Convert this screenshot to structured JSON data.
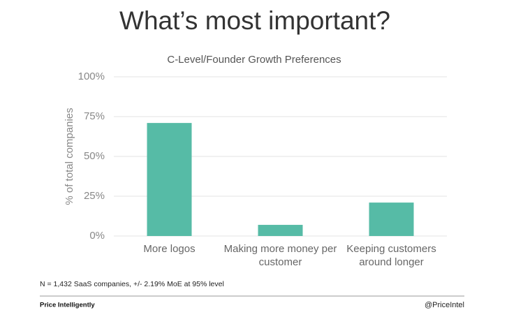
{
  "chart_data": {
    "type": "bar",
    "title": "What’s most important?",
    "subtitle": "C-Level/Founder Growth Preferences",
    "y_label": "% of total companies",
    "categories": [
      "More logos",
      "Making more money per customer",
      "Keeping customers around longer"
    ],
    "values": [
      71,
      7,
      21
    ],
    "color": "#56bba6",
    "ylim": [
      0,
      100
    ],
    "yticks": [
      {
        "value": 0,
        "label": "0%"
      },
      {
        "value": 25,
        "label": "25%"
      },
      {
        "value": 50,
        "label": "50%"
      },
      {
        "value": 75,
        "label": "75%"
      },
      {
        "value": 100,
        "label": "100%"
      }
    ],
    "grid": true
  },
  "footer": {
    "note": "N = 1,432 SaaS companies, +/- 2.19% MoE at 95% level",
    "brand": "Price Intelligently",
    "handle": "@PriceIntel"
  }
}
